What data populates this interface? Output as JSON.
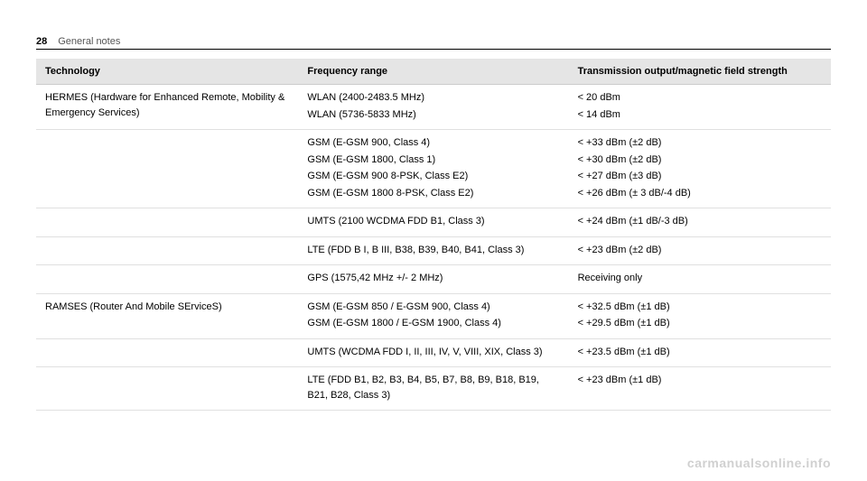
{
  "header": {
    "page_number": "28",
    "section": "General notes"
  },
  "table": {
    "columns": [
      "Technology",
      "Frequency range",
      "Transmission output/magnetic field strength"
    ],
    "rows": [
      {
        "tech": "HERMES (Hardware for Enhanced Remote, Mobility & Emergency Services)",
        "freq": [
          "WLAN (2400-2483.5 MHz)",
          "WLAN (5736-5833 MHz)"
        ],
        "trans": [
          "< 20 dBm",
          "< 14 dBm"
        ]
      },
      {
        "tech": "",
        "freq": [
          "GSM (E-GSM 900, Class 4)",
          "GSM (E-GSM 1800, Class 1)",
          "GSM (E-GSM 900 8-PSK, Class E2)",
          "GSM (E-GSM 1800 8-PSK, Class E2)"
        ],
        "trans": [
          "< +33 dBm (±2 dB)",
          "< +30 dBm (±2 dB)",
          "< +27 dBm (±3 dB)",
          "< +26 dBm (± 3 dB/-4 dB)"
        ]
      },
      {
        "tech": "",
        "freq": [
          "UMTS (2100 WCDMA FDD B1, Class 3)"
        ],
        "trans": [
          "< +24 dBm (±1 dB/-3 dB)"
        ]
      },
      {
        "tech": "",
        "freq": [
          "LTE (FDD B I, B III, B38, B39, B40, B41, Class 3)"
        ],
        "trans": [
          "< +23 dBm (±2 dB)"
        ]
      },
      {
        "tech": "",
        "freq": [
          "GPS (1575,42 MHz +/- 2 MHz)"
        ],
        "trans": [
          "Receiving only"
        ]
      },
      {
        "tech": "RAMSES (Router And Mobile SErviceS)",
        "freq": [
          "GSM (E-GSM 850 / E-GSM 900, Class 4)",
          "GSM (E-GSM 1800 / E-GSM 1900, Class 4)"
        ],
        "trans": [
          "< +32.5 dBm (±1 dB)",
          "< +29.5 dBm (±1 dB)"
        ]
      },
      {
        "tech": "",
        "freq": [
          "UMTS (WCDMA FDD I, II, III, IV, V, VIII, XIX, Class 3)"
        ],
        "trans": [
          "< +23.5 dBm (±1 dB)"
        ]
      },
      {
        "tech": "",
        "freq": [
          "LTE (FDD B1, B2, B3, B4, B5, B7, B8, B9, B18, B19, B21, B28, Class 3)"
        ],
        "trans": [
          "< +23 dBm (±1 dB)"
        ]
      }
    ]
  },
  "watermark": "carmanualsonline.info"
}
